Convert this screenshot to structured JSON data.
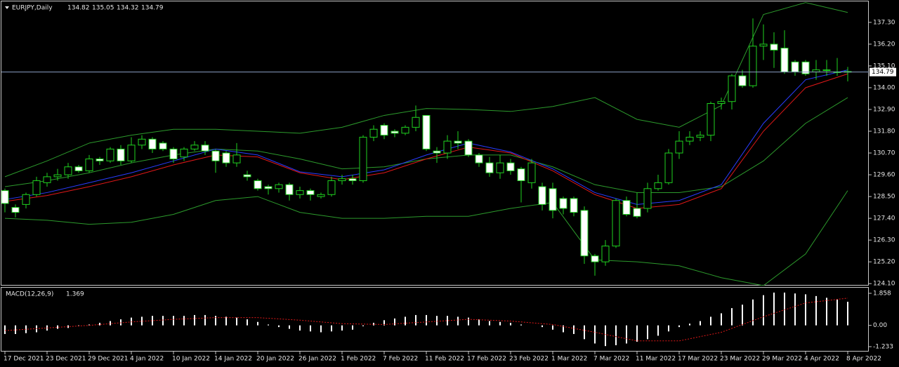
{
  "chart_data": {
    "type": "candlestick",
    "symbol": "EURJPY,Daily",
    "categories": [
      "17 Dec 2021",
      null,
      null,
      null,
      "23 Dec 2021",
      null,
      null,
      null,
      "29 Dec 2021",
      null,
      null,
      null,
      "4 Jan 2022",
      null,
      null,
      null,
      "10 Jan 2022",
      null,
      null,
      null,
      "14 Jan 2022",
      null,
      null,
      null,
      "20 Jan 2022",
      null,
      null,
      null,
      "26 Jan 2022",
      null,
      null,
      null,
      "1 Feb 2022",
      null,
      null,
      null,
      "7 Feb 2022",
      null,
      null,
      null,
      "11 Feb 2022",
      null,
      null,
      null,
      "17 Feb 2022",
      null,
      null,
      null,
      "23 Feb 2022",
      null,
      null,
      null,
      "1 Mar 2022",
      null,
      null,
      null,
      "7 Mar 2022",
      null,
      null,
      null,
      "11 Mar 2022",
      null,
      null,
      null,
      "17 Mar 2022",
      null,
      null,
      null,
      "23 Mar 2022",
      null,
      null,
      null,
      "29 Mar 2022",
      null,
      null,
      null,
      "4 Apr 2022",
      null,
      null,
      null,
      "8 Apr 2022"
    ],
    "open": [
      128.8,
      127.95,
      128.1,
      128.6,
      129.2,
      129.5,
      129.6,
      130.0,
      129.8,
      130.4,
      130.3,
      130.9,
      130.3,
      131.1,
      131.4,
      131.2,
      130.9,
      130.5,
      130.9,
      131.1,
      130.8,
      130.7,
      130.2,
      129.6,
      129.3,
      129.0,
      128.9,
      129.1,
      128.6,
      128.8,
      128.5,
      128.6,
      129.3,
      129.4,
      129.3,
      131.5,
      132.1,
      131.8,
      131.7,
      132.0,
      132.6,
      130.8,
      130.7,
      131.3,
      131.3,
      130.6,
      130.2,
      129.7,
      130.2,
      129.9,
      129.2,
      129.0,
      128.9,
      128.4,
      128.4,
      127.8,
      125.5,
      125.2,
      126.0,
      128.3,
      127.9,
      127.9,
      128.9,
      129.2,
      130.7,
      131.3,
      131.5,
      131.6,
      133.2,
      133.3,
      134.6,
      134.1,
      136.1,
      136.2,
      136.0,
      135.3,
      135.3,
      134.8,
      134.9,
      134.8,
      134.82
    ],
    "high": [
      128.9,
      128.1,
      128.7,
      129.5,
      129.7,
      129.9,
      130.2,
      130.1,
      130.6,
      130.5,
      131.0,
      131.1,
      131.5,
      131.6,
      131.5,
      131.3,
      131.0,
      131.0,
      131.3,
      131.3,
      130.9,
      130.8,
      131.2,
      129.8,
      129.4,
      129.1,
      129.2,
      129.2,
      129.0,
      128.9,
      128.7,
      129.5,
      129.6,
      129.6,
      131.6,
      132.1,
      132.2,
      131.9,
      132.1,
      133.1,
      132.6,
      131.0,
      131.6,
      131.8,
      131.4,
      130.7,
      130.5,
      130.6,
      130.4,
      130.0,
      130.4,
      129.2,
      129.2,
      128.5,
      128.5,
      128.0,
      125.6,
      126.3,
      128.4,
      128.5,
      128.7,
      129.2,
      129.6,
      130.9,
      131.8,
      131.8,
      131.8,
      133.3,
      133.5,
      134.7,
      134.9,
      137.5,
      137.2,
      136.8,
      136.9,
      135.4,
      135.4,
      135.4,
      135.4,
      135.5,
      135.05
    ],
    "low": [
      127.7,
      127.45,
      127.9,
      128.5,
      129.0,
      129.3,
      129.4,
      129.7,
      129.7,
      130.1,
      130.2,
      130.1,
      130.2,
      130.9,
      130.7,
      130.8,
      130.2,
      130.3,
      130.8,
      130.6,
      129.7,
      130.0,
      130.0,
      129.3,
      128.8,
      128.6,
      128.7,
      128.3,
      128.4,
      128.3,
      128.4,
      128.5,
      129.1,
      129.1,
      129.2,
      131.3,
      131.4,
      131.5,
      131.6,
      131.8,
      130.8,
      130.2,
      130.4,
      130.9,
      130.5,
      130.0,
      129.5,
      129.4,
      129.6,
      128.2,
      128.9,
      127.8,
      127.4,
      127.6,
      127.5,
      125.1,
      124.5,
      125.0,
      125.9,
      127.5,
      127.4,
      127.7,
      128.8,
      129.1,
      130.4,
      131.1,
      131.3,
      131.3,
      132.9,
      132.9,
      134.0,
      134.0,
      135.4,
      135.0,
      134.7,
      134.6,
      134.6,
      134.4,
      134.6,
      134.6,
      134.32
    ],
    "close": [
      128.15,
      127.7,
      128.6,
      129.3,
      129.5,
      129.6,
      130.0,
      129.8,
      130.4,
      130.3,
      130.9,
      130.3,
      131.1,
      131.4,
      130.9,
      130.9,
      130.4,
      130.9,
      131.1,
      130.8,
      130.3,
      130.2,
      130.6,
      129.5,
      128.9,
      128.9,
      129.1,
      128.6,
      128.8,
      128.6,
      128.6,
      129.3,
      129.4,
      129.3,
      131.5,
      131.9,
      131.6,
      131.7,
      132.0,
      132.5,
      130.9,
      130.7,
      131.3,
      131.2,
      130.6,
      130.2,
      129.7,
      130.2,
      129.8,
      129.3,
      130.2,
      128.1,
      127.8,
      127.9,
      127.7,
      125.5,
      125.2,
      126.0,
      128.3,
      127.6,
      127.5,
      128.9,
      129.2,
      130.7,
      131.3,
      131.5,
      131.6,
      133.2,
      133.3,
      134.6,
      134.1,
      136.1,
      136.2,
      135.9,
      134.8,
      134.8,
      134.7,
      134.9,
      134.9,
      134.8,
      134.79
    ],
    "bull_color": "#000000",
    "bear_color": "#ffffff",
    "wick_color": "#1fd21f",
    "series": [
      {
        "color": "#2c9a2c",
        "x": [
          0,
          4,
          8,
          12,
          16,
          20,
          24,
          28,
          32,
          36,
          40,
          44,
          48,
          52,
          56,
          60,
          64,
          68,
          72,
          76,
          80
        ],
        "values": [
          129.5,
          130.3,
          131.2,
          131.6,
          131.9,
          131.9,
          131.8,
          131.7,
          132.0,
          132.6,
          132.95,
          132.9,
          132.8,
          133.05,
          133.5,
          132.4,
          132.0,
          133.1,
          137.7,
          138.3,
          137.8
        ]
      },
      {
        "color": "#2c9a2c",
        "x": [
          0,
          4,
          8,
          12,
          16,
          20,
          24,
          28,
          32,
          36,
          40,
          44,
          48,
          52,
          56,
          60,
          64,
          68,
          72,
          76,
          80
        ],
        "values": [
          129.0,
          129.3,
          129.7,
          130.2,
          130.6,
          130.9,
          130.8,
          130.4,
          129.9,
          130.0,
          130.4,
          130.6,
          130.6,
          130.0,
          129.1,
          128.7,
          128.7,
          129.0,
          130.3,
          132.2,
          133.5
        ]
      },
      {
        "color": "#2c9a2c",
        "x": [
          0,
          4,
          8,
          12,
          16,
          20,
          24,
          28,
          32,
          36,
          40,
          44,
          48,
          52,
          56,
          60,
          64,
          68,
          72,
          76,
          80
        ],
        "values": [
          127.4,
          127.3,
          127.1,
          127.2,
          127.6,
          128.3,
          128.5,
          127.7,
          127.4,
          127.4,
          127.5,
          127.5,
          127.9,
          128.2,
          125.3,
          125.2,
          125.0,
          124.4,
          124.0,
          125.6,
          128.8
        ]
      },
      {
        "color": "#2a3cff",
        "x": [
          0,
          4,
          8,
          12,
          16,
          20,
          24,
          28,
          32,
          36,
          40,
          44,
          48,
          52,
          56,
          60,
          64,
          68,
          72,
          76,
          80
        ],
        "values": [
          128.35,
          128.7,
          129.2,
          129.7,
          130.3,
          130.9,
          130.6,
          129.75,
          129.5,
          129.85,
          130.6,
          131.2,
          130.75,
          129.9,
          128.7,
          128.1,
          128.3,
          129.1,
          132.2,
          134.4,
          134.9
        ]
      },
      {
        "color": "#e01818",
        "x": [
          0,
          4,
          8,
          12,
          16,
          20,
          24,
          28,
          32,
          36,
          40,
          44,
          48,
          52,
          56,
          60,
          64,
          68,
          72,
          76,
          80
        ],
        "values": [
          128.25,
          128.55,
          129.0,
          129.5,
          130.1,
          130.6,
          130.5,
          129.7,
          129.35,
          129.7,
          130.4,
          131.0,
          130.7,
          129.8,
          128.6,
          127.9,
          128.1,
          128.9,
          131.8,
          134.0,
          134.7
        ]
      }
    ],
    "current_price": 134.79,
    "price_line_color": "#8a9ec4",
    "ylim": [
      124.0,
      138.36
    ],
    "yticks": [
      {
        "value": 137.3,
        "label": "137.30"
      },
      {
        "value": 136.2,
        "label": "136.20"
      },
      {
        "value": 135.1,
        "label": "135.10"
      },
      {
        "value": 134.0,
        "label": "134.00"
      },
      {
        "value": 132.9,
        "label": "132.90"
      },
      {
        "value": 131.8,
        "label": "131.80"
      },
      {
        "value": 130.7,
        "label": "130.70"
      },
      {
        "value": 129.6,
        "label": "129.60"
      },
      {
        "value": 128.5,
        "label": "128.50"
      },
      {
        "value": 127.4,
        "label": "127.40"
      },
      {
        "value": 126.3,
        "label": "126.30"
      },
      {
        "value": 125.2,
        "label": "125.20"
      },
      {
        "value": 124.1,
        "label": "124.10"
      }
    ],
    "macd": {
      "type": "bar",
      "title": "MACD(12,26,9)",
      "color": "#ffffff",
      "values": [
        -0.5,
        -0.5,
        -0.45,
        -0.4,
        -0.3,
        -0.2,
        -0.15,
        -0.05,
        0.05,
        0.15,
        0.25,
        0.35,
        0.45,
        0.5,
        0.55,
        0.55,
        0.55,
        0.55,
        0.6,
        0.6,
        0.55,
        0.5,
        0.45,
        0.35,
        0.2,
        0.05,
        -0.1,
        -0.2,
        -0.3,
        -0.35,
        -0.4,
        -0.35,
        -0.3,
        -0.25,
        -0.05,
        0.15,
        0.3,
        0.4,
        0.5,
        0.6,
        0.6,
        0.55,
        0.55,
        0.5,
        0.45,
        0.35,
        0.25,
        0.2,
        0.15,
        0.05,
        0.0,
        -0.1,
        -0.25,
        -0.4,
        -0.5,
        -0.8,
        -1.05,
        -1.2,
        -1.15,
        -1.05,
        -0.95,
        -0.8,
        -0.6,
        -0.35,
        -0.1,
        0.1,
        0.25,
        0.5,
        0.7,
        1.0,
        1.2,
        1.5,
        1.75,
        1.9,
        1.9,
        1.85,
        1.8,
        1.7,
        1.6,
        1.5,
        1.369
      ],
      "signal": {
        "color": "#e01818",
        "x": [
          0,
          4,
          8,
          12,
          16,
          20,
          24,
          28,
          32,
          36,
          40,
          44,
          48,
          52,
          56,
          60,
          64,
          68,
          72,
          76,
          80
        ],
        "values": [
          -0.3,
          -0.15,
          0.0,
          0.2,
          0.35,
          0.45,
          0.45,
          0.3,
          0.1,
          0.05,
          0.2,
          0.35,
          0.25,
          0.05,
          -0.4,
          -0.9,
          -0.9,
          -0.4,
          0.5,
          1.3,
          1.578
        ]
      },
      "ylim": [
        -1.477,
        2.183
      ],
      "yticks": [
        1.858,
        {
          "value": 0,
          "label": "0.00"
        },
        -1.233
      ]
    }
  }
}
